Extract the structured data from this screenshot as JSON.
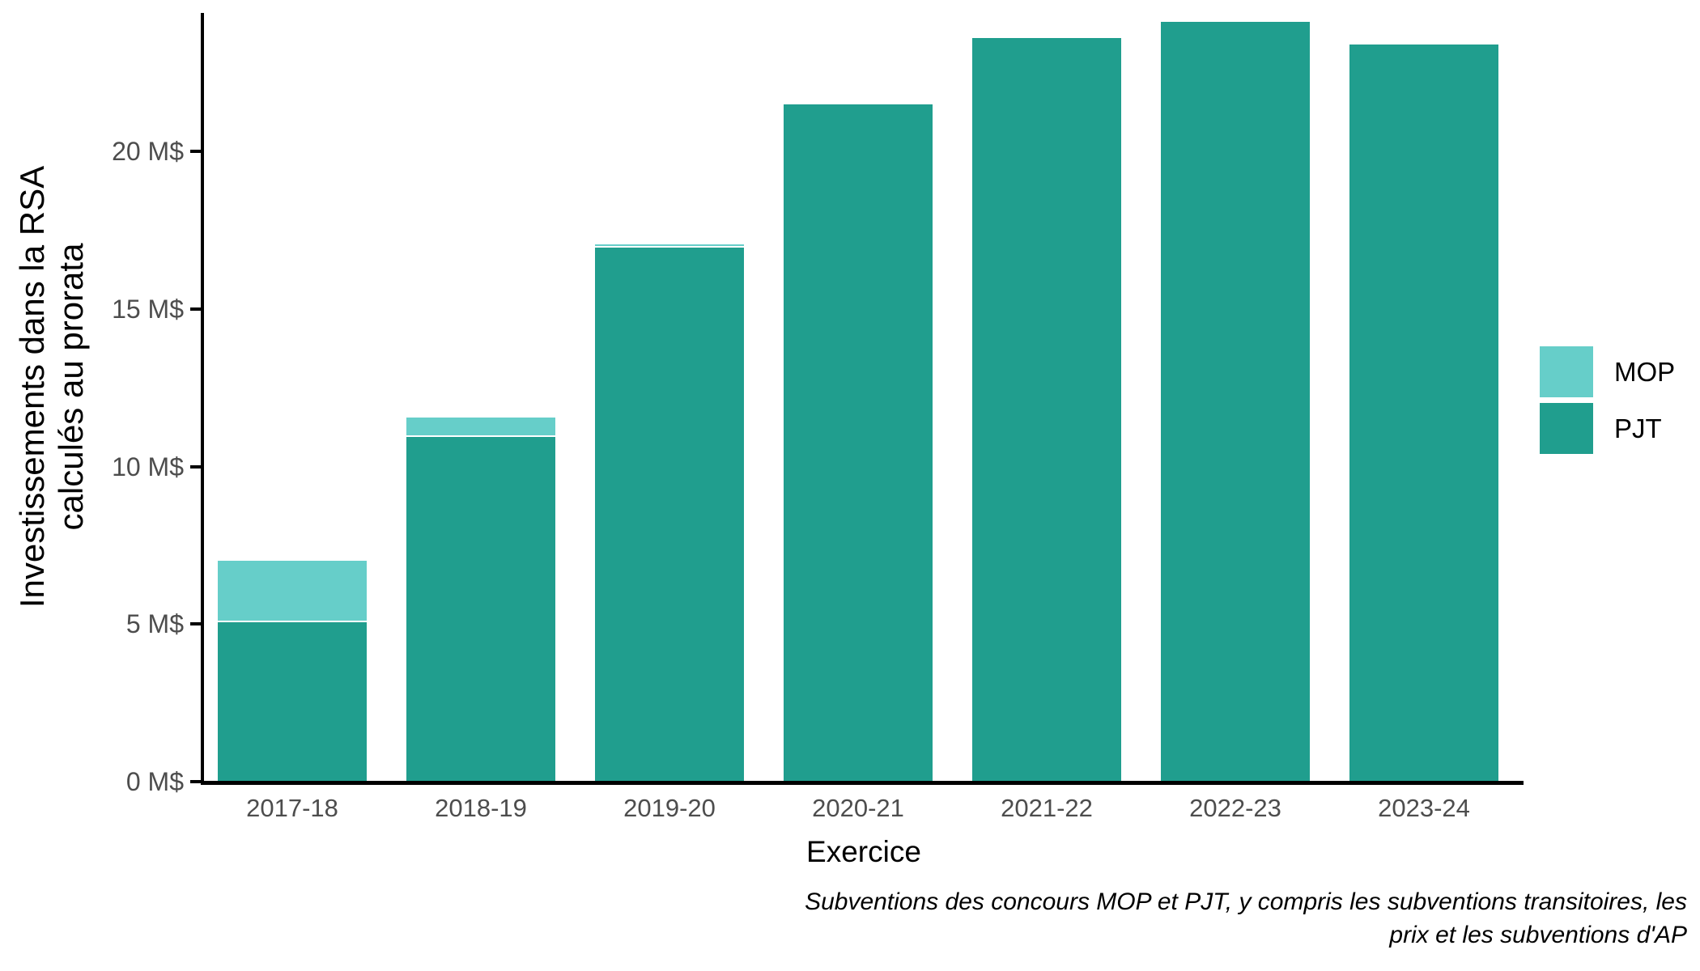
{
  "chart_data": {
    "type": "bar",
    "stacked": true,
    "categories": [
      "2017-18",
      "2018-19",
      "2019-20",
      "2020-21",
      "2021-22",
      "2022-23",
      "2023-24"
    ],
    "series": [
      {
        "name": "MOP",
        "color": "#66cec9",
        "values": [
          1.95,
          0.6,
          0.1,
          0.05,
          0.05,
          0.05,
          0.05
        ]
      },
      {
        "name": "PJT",
        "color": "#209e8e",
        "values": [
          5.1,
          11.0,
          17.0,
          21.55,
          23.65,
          24.15,
          23.45
        ]
      }
    ],
    "xlabel": "Exercice",
    "ylabel": "Investissements dans la RSA calculés au prorata",
    "ylabel_lines": [
      "Investissements dans la RSA",
      "calculés au prorata"
    ],
    "yticks": [
      0,
      5,
      10,
      15,
      20
    ],
    "ytick_labels": [
      "0 M$",
      "5 M$",
      "10 M$",
      "15 M$",
      "20 M$"
    ],
    "ylim": [
      0,
      24.4
    ],
    "grid": false,
    "legend_position": "right",
    "segment_border_color": "#ffffff",
    "axis_line_color": "#000000",
    "tick_text_color": "#4d4d4d",
    "caption_lines": [
      "Subventions des concours MOP et PJT, y compris les subventions transitoires, les",
      "prix et les subventions d'AP"
    ]
  }
}
